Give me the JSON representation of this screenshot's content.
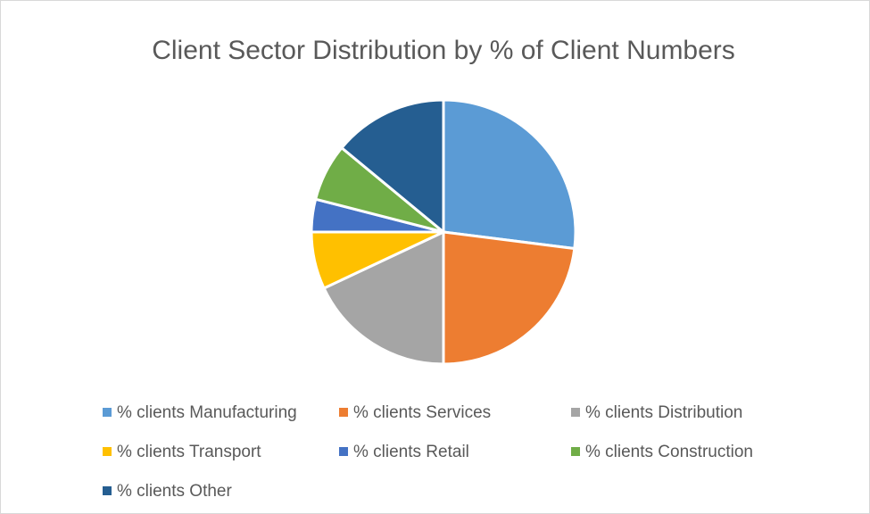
{
  "chart_data": {
    "type": "pie",
    "title": "Client Sector Distribution by % of Client Numbers",
    "categories": [
      "% clients Manufacturing",
      "% clients Services",
      "% clients Distribution",
      "% clients Transport",
      "% clients Retail",
      "% clients Construction",
      "% clients Other"
    ],
    "values": [
      27,
      23,
      18,
      7,
      4,
      7,
      14
    ],
    "colors": [
      "#5b9bd5",
      "#ed7d31",
      "#a5a5a5",
      "#ffc000",
      "#4472c4",
      "#70ad47",
      "#255e91"
    ],
    "legend": "bottom"
  }
}
